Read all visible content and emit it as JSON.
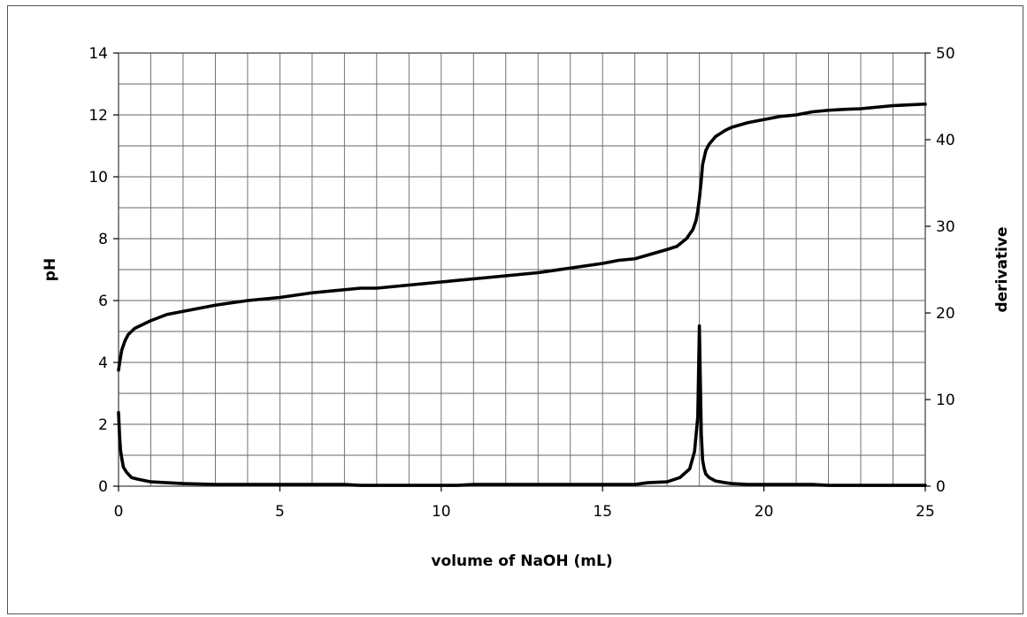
{
  "chart_data": {
    "type": "line",
    "title": "",
    "xlabel": "volume of NaOH (mL)",
    "ylabel": "pH",
    "y2label": "derivative",
    "xlim": [
      0,
      25
    ],
    "ylim": [
      0,
      14
    ],
    "y2lim": [
      0,
      50
    ],
    "x_ticks": [
      0,
      5,
      10,
      15,
      20,
      25
    ],
    "y_ticks": [
      0,
      2,
      4,
      6,
      8,
      10,
      12,
      14
    ],
    "y2_ticks": [
      0,
      10,
      20,
      30,
      40,
      50
    ],
    "x_tick_labels": [
      "0",
      "5",
      "10",
      "15",
      "20",
      "25"
    ],
    "y_tick_labels": [
      "0",
      "2",
      "4",
      "6",
      "8",
      "10",
      "12",
      "14"
    ],
    "y2_tick_labels": [
      "0",
      "10",
      "20",
      "30",
      "40",
      "50"
    ],
    "grid": true,
    "legend": "none",
    "line_color": "#000000",
    "series": [
      {
        "axis": "left",
        "x": [
          0,
          0.05,
          0.1,
          0.2,
          0.3,
          0.5,
          0.8,
          1.0,
          1.5,
          2.0,
          3.0,
          4.0,
          5.0,
          6.0,
          7.0,
          7.5,
          8.0,
          9.0,
          10.0,
          11.0,
          12.0,
          13.0,
          14.0,
          15.0,
          15.5,
          16.0,
          16.5,
          17.0,
          17.3,
          17.6,
          17.8,
          17.9,
          17.95,
          18.0,
          18.05,
          18.1,
          18.2,
          18.3,
          18.5,
          18.8,
          19.0,
          19.5,
          20.0,
          20.5,
          21.0,
          21.5,
          22.0,
          22.5,
          23.0,
          24.0,
          25.0
        ],
        "values": [
          3.75,
          4.1,
          4.4,
          4.7,
          4.9,
          5.1,
          5.25,
          5.35,
          5.55,
          5.65,
          5.85,
          6.0,
          6.1,
          6.25,
          6.35,
          6.4,
          6.4,
          6.5,
          6.6,
          6.7,
          6.8,
          6.9,
          7.05,
          7.2,
          7.3,
          7.35,
          7.5,
          7.65,
          7.75,
          8.0,
          8.3,
          8.6,
          8.9,
          9.3,
          9.8,
          10.4,
          10.85,
          11.05,
          11.3,
          11.5,
          11.6,
          11.75,
          11.85,
          11.95,
          12.0,
          12.1,
          12.15,
          12.18,
          12.2,
          12.3,
          12.35
        ]
      },
      {
        "axis": "right",
        "x": [
          0,
          0.03,
          0.06,
          0.1,
          0.15,
          0.25,
          0.4,
          0.6,
          1.0,
          1.5,
          2.0,
          3.0,
          5.0,
          7.0,
          7.5,
          8.0,
          10.0,
          10.5,
          11.0,
          13.0,
          15.0,
          16.0,
          16.4,
          17.0,
          17.4,
          17.7,
          17.85,
          17.95,
          18.0,
          18.03,
          18.06,
          18.1,
          18.15,
          18.2,
          18.3,
          18.5,
          18.8,
          19.0,
          19.5,
          20.0,
          21.5,
          22.0,
          25.0
        ],
        "values": [
          8.5,
          6.0,
          4.2,
          3.2,
          2.2,
          1.6,
          1.0,
          0.8,
          0.5,
          0.4,
          0.3,
          0.2,
          0.2,
          0.2,
          0.1,
          0.1,
          0.1,
          0.1,
          0.2,
          0.2,
          0.2,
          0.2,
          0.4,
          0.5,
          1.0,
          2.0,
          4.0,
          8.0,
          18.5,
          12.0,
          6.0,
          3.0,
          2.0,
          1.4,
          1.0,
          0.6,
          0.4,
          0.3,
          0.2,
          0.2,
          0.2,
          0.1,
          0.1
        ]
      }
    ]
  }
}
